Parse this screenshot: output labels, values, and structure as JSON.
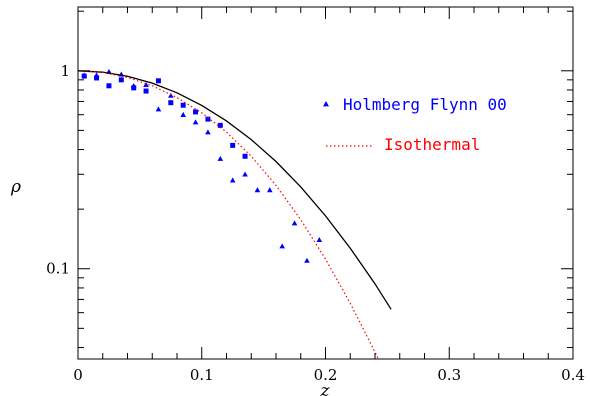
{
  "chart_data": {
    "type": "scatter",
    "xlabel": "z",
    "ylabel": "ρ",
    "xlim": [
      0,
      0.4
    ],
    "ylim": [
      0.035,
      2.1
    ],
    "yscale": "log",
    "x_ticks": [
      "0",
      "0.1",
      "0.2",
      "0.3",
      "0.4"
    ],
    "x_tick_values": [
      0,
      0.1,
      0.2,
      0.3,
      0.4
    ],
    "y_ticks": [
      "0.1",
      "1"
    ],
    "y_tick_values": [
      0.1,
      1
    ],
    "grid": false,
    "legend_position": "right",
    "series": [
      {
        "name": "Holmberg Flynn 00",
        "kind": "points",
        "marker": "triangle",
        "color": "#0000ff",
        "x": [
          0.005,
          0.015,
          0.025,
          0.035,
          0.045,
          0.055,
          0.065,
          0.075,
          0.085,
          0.095,
          0.105,
          0.115,
          0.125,
          0.135,
          0.145,
          0.155,
          0.165,
          0.175,
          0.185,
          0.195
        ],
        "y": [
          0.95,
          0.95,
          0.99,
          0.96,
          0.84,
          0.85,
          0.64,
          0.75,
          0.6,
          0.55,
          0.49,
          0.36,
          0.28,
          0.3,
          0.25,
          0.25,
          0.13,
          0.17,
          0.11,
          0.14
        ]
      },
      {
        "name": "",
        "kind": "points",
        "marker": "square",
        "color": "#0000ff",
        "x": [
          0.005,
          0.015,
          0.025,
          0.035,
          0.045,
          0.055,
          0.065,
          0.075,
          0.085,
          0.095,
          0.105,
          0.115,
          0.125,
          0.135
        ],
        "y": [
          0.94,
          0.92,
          0.84,
          0.9,
          0.82,
          0.79,
          0.89,
          0.69,
          0.67,
          0.62,
          0.57,
          0.53,
          0.42,
          0.37
        ]
      },
      {
        "name": "",
        "kind": "line",
        "style": "solid",
        "color": "#000000",
        "x": [
          0,
          0.02,
          0.04,
          0.06,
          0.08,
          0.1,
          0.12,
          0.14,
          0.16,
          0.18,
          0.2,
          0.22,
          0.24,
          0.253
        ],
        "y": [
          1.0,
          0.984,
          0.938,
          0.866,
          0.774,
          0.668,
          0.558,
          0.449,
          0.348,
          0.259,
          0.185,
          0.127,
          0.0839,
          0.0624
        ]
      },
      {
        "name": "Isothermal",
        "kind": "line",
        "style": "dotted",
        "color": "#ff0000",
        "x": [
          0,
          0.02,
          0.04,
          0.06,
          0.08,
          0.1,
          0.12,
          0.14,
          0.16,
          0.18,
          0.2,
          0.22,
          0.24,
          0.245
        ],
        "y": [
          1.0,
          0.981,
          0.926,
          0.84,
          0.732,
          0.613,
          0.49,
          0.37,
          0.264,
          0.177,
          0.112,
          0.0669,
          0.0379,
          0.0328
        ]
      }
    ],
    "legend": [
      {
        "label": "Holmberg Flynn 00",
        "marker": "triangle",
        "color": "#0000ff"
      },
      {
        "label": "Isothermal",
        "marker": "dotted-line",
        "color": "#ff0000"
      }
    ]
  }
}
